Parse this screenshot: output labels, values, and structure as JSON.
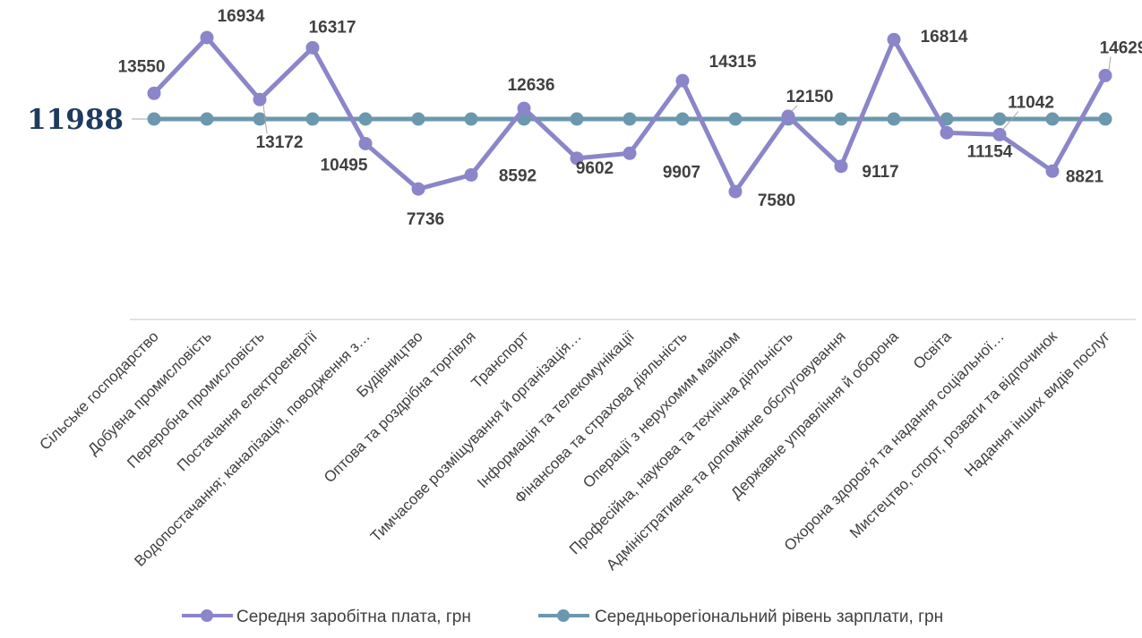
{
  "chart_data": {
    "type": "line",
    "categories": [
      "Сільське господарство",
      "Добувна промисловість",
      "Переробна промисловість",
      "Постачання електроенергії",
      "Водопостачання; каналізація, поводження з…",
      "Будівництво",
      "Оптова та роздрібна торгівля",
      "Транспорт",
      "Тимчасове розміщування й організація…",
      "Інформація та телекомунікації",
      "Фінансова та страхова діяльність",
      "Операції з нерухомим майном",
      "Професійна, наукова та технічна діяльність",
      "Адміністративне та допоміжне обслуговування",
      "Державне управління й оборона",
      "Освіта",
      "Охорона здоров’я та надання соціальної…",
      "Мистецтво, спорт, розваги та відпочинок",
      "Надання інших видів послуг"
    ],
    "series": [
      {
        "name": "Середня заробітна плата, грн",
        "color": "#8b85c9",
        "values": [
          13550,
          16934,
          13172,
          16317,
          10495,
          7736,
          8592,
          12636,
          9602,
          9907,
          14315,
          7580,
          12150,
          9117,
          16814,
          11154,
          11042,
          8821,
          14629
        ],
        "value_labels": [
          "13550",
          "16934",
          "13172",
          "16317",
          "10495",
          "7736",
          "8592",
          "12636",
          "9602",
          "9907",
          "14315",
          "7580",
          "12150",
          "9117",
          "16814",
          "11154",
          "11042",
          "8821",
          "14629"
        ]
      },
      {
        "name": "Середньорегіональний рівень зарплати, грн",
        "color": "#6b98ae",
        "values": [
          11988,
          11988,
          11988,
          11988,
          11988,
          11988,
          11988,
          11988,
          11988,
          11988,
          11988,
          11988,
          11988,
          11988,
          11988,
          11988,
          11988,
          11988,
          11988
        ]
      }
    ],
    "average_label": "11988",
    "ylim": [
      0,
      17500
    ],
    "grid": false,
    "legend_position": "bottom"
  }
}
